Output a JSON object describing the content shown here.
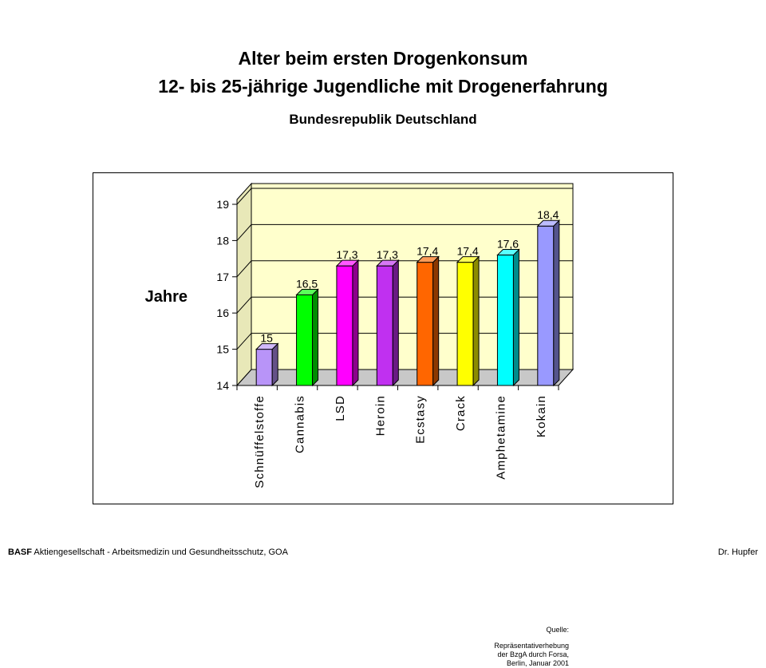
{
  "header": {
    "title_line1": "Alter beim ersten Drogenkonsum",
    "title_line2": "12- bis 25-jährige Jugendliche mit Drogenerfahrung",
    "subtitle": "Bundesrepublik Deutschland"
  },
  "chart_data": {
    "type": "bar",
    "ylabel": "Jahre",
    "ylim": [
      14,
      19
    ],
    "yticks": [
      14,
      15,
      16,
      17,
      18,
      19
    ],
    "grid": true,
    "categories": [
      "Schnüffelstoffe",
      "Cannabis",
      "LSD",
      "Heroin",
      "Ecstasy",
      "Crack",
      "Amphetamine",
      "Kokain"
    ],
    "values": [
      15,
      16.5,
      17.3,
      17.3,
      17.4,
      17.4,
      17.6,
      18.4
    ],
    "value_labels": [
      "15",
      "16,5",
      "17,3",
      "17,3",
      "17,4",
      "17,4",
      "17,6",
      "18,4"
    ],
    "colors": [
      "#b894f8",
      "#00ff00",
      "#ff00ff",
      "#c030f0",
      "#ff6600",
      "#ffff00",
      "#00ffff",
      "#9999ff"
    ],
    "plot_background": "#ffffcc"
  },
  "source": {
    "label": "Quelle:",
    "lines": [
      "Repräsentativerhebung",
      "der BzgA durch Forsa,",
      "Berlin, Januar 2001"
    ]
  },
  "footer": {
    "left_bold": "BASF",
    "left_text": " Aktiengesellschaft - Arbeitsmedizin und Gesundheitsschutz, GOA",
    "right": "Dr. Hupfer"
  }
}
